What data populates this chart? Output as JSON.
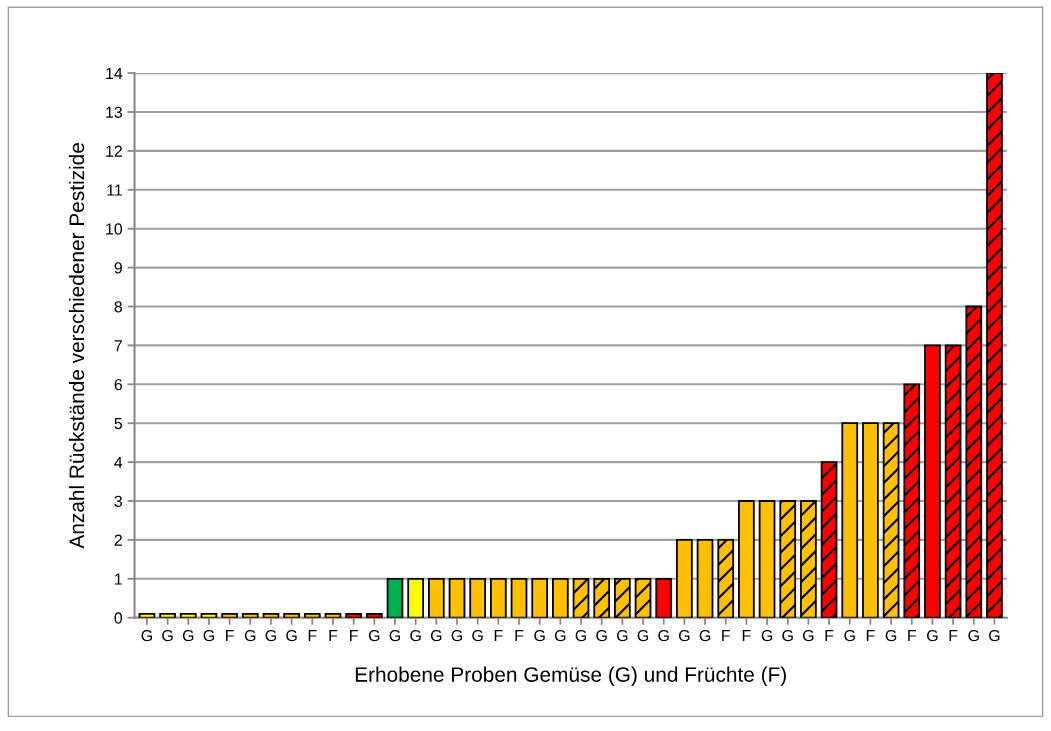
{
  "chart_data": {
    "type": "bar",
    "xlabel": "Erhobene Proben Gemüse (G) und Früchte (F)",
    "ylabel": "Anzahl Rückstände verschiedener Pestizide",
    "categories": [
      "G",
      "G",
      "G",
      "G",
      "F",
      "G",
      "G",
      "G",
      "F",
      "F",
      "F",
      "G",
      "G",
      "G",
      "G",
      "G",
      "G",
      "F",
      "F",
      "G",
      "G",
      "G",
      "G",
      "G",
      "G",
      "G",
      "G",
      "G",
      "F",
      "F",
      "G",
      "G",
      "G",
      "F",
      "G",
      "F",
      "G",
      "F",
      "G",
      "F",
      "G",
      "G"
    ],
    "series": [
      {
        "values": [
          0.1,
          0.1,
          0.1,
          0.1,
          0.1,
          0.1,
          0.1,
          0.1,
          0.1,
          0.1,
          0.1,
          0.1,
          1,
          1,
          1,
          1,
          1,
          1,
          1,
          1,
          1,
          null,
          null,
          null,
          null,
          1,
          2,
          2,
          null,
          3,
          3,
          null,
          null,
          null,
          5,
          5,
          null,
          null,
          7,
          null,
          null,
          null
        ],
        "colors": [
          "#ffff00",
          "#ffff00",
          "#ffff00",
          "#ffff00",
          "#ffc000",
          "#ffc000",
          "#ffc000",
          "#ffc000",
          "#ffc000",
          "#ffc000",
          "#ff0000",
          "#ff0000",
          "#00b050",
          "#ffff00",
          "#ffc000",
          "#ffc000",
          "#ffc000",
          "#ffc000",
          "#ffc000",
          "#ffc000",
          "#ffc000",
          null,
          null,
          null,
          null,
          "#ff0000",
          "#ffc000",
          "#ffc000",
          null,
          "#ffc000",
          "#ffc000",
          null,
          null,
          null,
          "#ffc000",
          "#ffc000",
          null,
          null,
          "#ff0000",
          null,
          null,
          null
        ]
      },
      {
        "values": [
          null,
          null,
          null,
          null,
          null,
          null,
          null,
          null,
          null,
          null,
          null,
          null,
          null,
          null,
          null,
          null,
          null,
          null,
          null,
          null,
          null,
          1,
          1,
          1,
          1,
          null,
          null,
          null,
          2,
          null,
          null,
          3,
          3,
          4,
          null,
          null,
          5,
          6,
          null,
          7,
          8,
          14
        ],
        "colors": [
          null,
          null,
          null,
          null,
          null,
          null,
          null,
          null,
          null,
          null,
          null,
          null,
          null,
          null,
          null,
          null,
          null,
          null,
          null,
          null,
          null,
          "#ffc000",
          "#ffc000",
          "#ffc000",
          "#ffc000",
          null,
          null,
          null,
          "#ffc000",
          null,
          null,
          "#ffc000",
          "#ffc000",
          "#ff0000",
          null,
          null,
          "#ffc000",
          "#ff0000",
          null,
          "#ff0000",
          "#ff0000",
          "#ff0000"
        ]
      }
    ],
    "ylim": [
      0,
      14
    ],
    "yticks": [
      0,
      1,
      2,
      3,
      4,
      5,
      6,
      7,
      8,
      9,
      10,
      11,
      12,
      13,
      14
    ],
    "grid": "y",
    "legend": false
  }
}
